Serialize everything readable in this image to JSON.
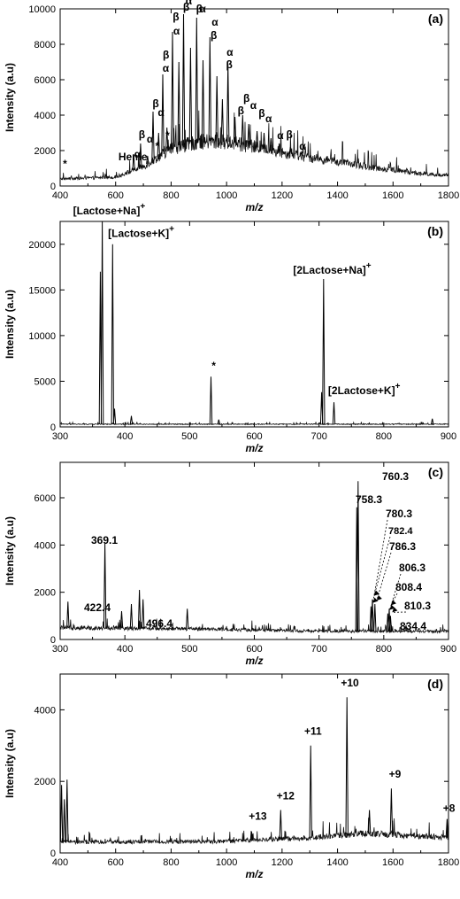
{
  "chart_data": [
    {
      "panel": "(a)",
      "type": "line",
      "xlabel": "m/z",
      "ylabel": "Intensity (a.u)",
      "xlim": [
        400,
        1800
      ],
      "ylim": [
        0,
        10000
      ],
      "xticks": [
        400,
        600,
        800,
        1000,
        1200,
        1400,
        1600,
        1800
      ],
      "yticks": [
        0,
        2000,
        4000,
        6000,
        8000,
        10000
      ],
      "baseline": [
        [
          400,
          400
        ],
        [
          600,
          500
        ],
        [
          700,
          1100
        ],
        [
          800,
          2100
        ],
        [
          900,
          2500
        ],
        [
          1000,
          2500
        ],
        [
          1100,
          2200
        ],
        [
          1200,
          1900
        ],
        [
          1300,
          1600
        ],
        [
          1400,
          1350
        ],
        [
          1500,
          1100
        ],
        [
          1600,
          900
        ],
        [
          1700,
          700
        ],
        [
          1800,
          600
        ]
      ],
      "peaks": [
        {
          "x": 665,
          "y": 1800
        },
        {
          "x": 690,
          "y": 2400
        },
        {
          "x": 715,
          "y": 1700
        },
        {
          "x": 735,
          "y": 4200
        },
        {
          "x": 755,
          "y": 3000
        },
        {
          "x": 770,
          "y": 6300
        },
        {
          "x": 785,
          "y": 3300
        },
        {
          "x": 805,
          "y": 8700
        },
        {
          "x": 828,
          "y": 7000
        },
        {
          "x": 845,
          "y": 9700
        },
        {
          "x": 870,
          "y": 7800
        },
        {
          "x": 892,
          "y": 9500
        },
        {
          "x": 915,
          "y": 7100
        },
        {
          "x": 940,
          "y": 8400
        },
        {
          "x": 965,
          "y": 6200
        },
        {
          "x": 985,
          "y": 4900
        },
        {
          "x": 1005,
          "y": 6900
        },
        {
          "x": 1030,
          "y": 3900
        },
        {
          "x": 1058,
          "y": 4000
        },
        {
          "x": 1080,
          "y": 3500
        },
        {
          "x": 1110,
          "y": 3100
        },
        {
          "x": 1135,
          "y": 3000
        },
        {
          "x": 1160,
          "y": 2700
        },
        {
          "x": 1190,
          "y": 2400
        },
        {
          "x": 1230,
          "y": 2200
        },
        {
          "x": 1270,
          "y": 1900
        }
      ],
      "annotations": [
        {
          "text": "*",
          "x": 410,
          "y": 1050
        },
        {
          "text": "Heme",
          "x": 610,
          "y": 1450
        },
        {
          "text": "α",
          "x": 667,
          "y": 1600
        },
        {
          "text": "β",
          "x": 683,
          "y": 2700
        },
        {
          "text": "α",
          "x": 712,
          "y": 2450
        },
        {
          "text": "*",
          "x": 743,
          "y": 2050
        },
        {
          "text": "β",
          "x": 733,
          "y": 4450
        },
        {
          "text": "α",
          "x": 752,
          "y": 3950
        },
        {
          "text": "*",
          "x": 780,
          "y": 2650
        },
        {
          "text": "α",
          "x": 769,
          "y": 6450
        },
        {
          "text": "β",
          "x": 770,
          "y": 7200
        },
        {
          "text": "α",
          "x": 808,
          "y": 8550
        },
        {
          "text": "β",
          "x": 806,
          "y": 9350
        },
        {
          "text": "β",
          "x": 843,
          "y": 9900
        },
        {
          "text": "α",
          "x": 852,
          "y": 10250
        },
        {
          "text": "β",
          "x": 890,
          "y": 9800
        },
        {
          "text": "α",
          "x": 902,
          "y": 9800
        },
        {
          "text": "α",
          "x": 946,
          "y": 9050
        },
        {
          "text": "β",
          "x": 942,
          "y": 8300
        },
        {
          "text": "α",
          "x": 1000,
          "y": 7350
        },
        {
          "text": "β",
          "x": 998,
          "y": 6650
        },
        {
          "text": "β",
          "x": 1040,
          "y": 4050
        },
        {
          "text": "β",
          "x": 1060,
          "y": 4750
        },
        {
          "text": "α",
          "x": 1085,
          "y": 4350
        },
        {
          "text": "β",
          "x": 1115,
          "y": 3900
        },
        {
          "text": "α",
          "x": 1140,
          "y": 3600
        },
        {
          "text": "α",
          "x": 1182,
          "y": 2650
        },
        {
          "text": "β",
          "x": 1215,
          "y": 2700
        },
        {
          "text": "α",
          "x": 1262,
          "y": 2050
        }
      ]
    },
    {
      "panel": "(b)",
      "type": "line",
      "xlabel": "m/z",
      "ylabel": "Intensity (a.u)",
      "xlim": [
        300,
        900
      ],
      "ylim": [
        0,
        22500
      ],
      "xticks": [
        300,
        400,
        500,
        600,
        700,
        800,
        900
      ],
      "yticks": [
        0,
        5000,
        10000,
        15000,
        20000
      ],
      "baseline": [
        [
          300,
          300
        ],
        [
          900,
          300
        ]
      ],
      "peaks": [
        {
          "x": 362,
          "y": 17000
        },
        {
          "x": 365,
          "y": 22500
        },
        {
          "x": 381,
          "y": 20000
        },
        {
          "x": 384,
          "y": 2000
        },
        {
          "x": 410,
          "y": 1200
        },
        {
          "x": 533,
          "y": 5500
        },
        {
          "x": 545,
          "y": 800
        },
        {
          "x": 704,
          "y": 3800
        },
        {
          "x": 707,
          "y": 16200
        },
        {
          "x": 723,
          "y": 2700
        },
        {
          "x": 875,
          "y": 900
        }
      ],
      "annotations": [
        {
          "text": "[Lactose+Na]",
          "sup": "+",
          "x": 320,
          "y": 23300
        },
        {
          "text": "[Lactose+K]",
          "sup": "+",
          "x": 374,
          "y": 20800
        },
        {
          "text": "*",
          "x": 534,
          "y": 6300
        },
        {
          "text": "[2Lactose+Na]",
          "sup": "+",
          "x": 660,
          "y": 16800
        },
        {
          "text": "[2Lactose+K]",
          "sup": "+",
          "x": 714,
          "y": 3600
        }
      ]
    },
    {
      "panel": "(c)",
      "type": "line",
      "xlabel": "m/z",
      "ylabel": "Intensity (a.u)",
      "xlim": [
        300,
        900
      ],
      "ylim": [
        0,
        7500
      ],
      "xticks": [
        300,
        400,
        500,
        600,
        700,
        800,
        900
      ],
      "yticks": [
        0,
        2000,
        4000,
        6000
      ],
      "baseline": [
        [
          300,
          500
        ],
        [
          500,
          450
        ],
        [
          700,
          350
        ],
        [
          900,
          350
        ]
      ],
      "peaks": [
        {
          "x": 312,
          "y": 1600
        },
        {
          "x": 369.1,
          "y": 4100
        },
        {
          "x": 395,
          "y": 1200
        },
        {
          "x": 410,
          "y": 1500
        },
        {
          "x": 422.4,
          "y": 2100
        },
        {
          "x": 428,
          "y": 1700
        },
        {
          "x": 496.4,
          "y": 1300
        },
        {
          "x": 758.3,
          "y": 5600
        },
        {
          "x": 760.3,
          "y": 6700
        },
        {
          "x": 780.3,
          "y": 1400
        },
        {
          "x": 782.4,
          "y": 1700
        },
        {
          "x": 786.3,
          "y": 1500
        },
        {
          "x": 806.3,
          "y": 1100
        },
        {
          "x": 808.4,
          "y": 1300
        },
        {
          "x": 810.3,
          "y": 1000
        },
        {
          "x": 834.4,
          "y": 600
        }
      ],
      "labels": [
        {
          "text": "369.1",
          "peak": 369.1
        },
        {
          "text": "422.4",
          "peak": 422.4
        },
        {
          "text": "496.4",
          "peak": 496.4
        },
        {
          "text": "758.3",
          "peak": 758.3
        },
        {
          "text": "760.3",
          "peak": 760.3
        },
        {
          "text": "780.3",
          "peak": 780.3
        },
        {
          "text": "782.4",
          "peak": 782.4
        },
        {
          "text": "786.3",
          "peak": 786.3
        },
        {
          "text": "806.3",
          "peak": 806.3
        },
        {
          "text": "808.4",
          "peak": 808.4
        },
        {
          "text": "810.3",
          "peak": 810.3
        },
        {
          "text": "834.4",
          "peak": 834.4
        }
      ]
    },
    {
      "panel": "(d)",
      "type": "line",
      "xlabel": "m/z",
      "ylabel": "Intensity (a.u)",
      "xlim": [
        400,
        1800
      ],
      "ylim": [
        0,
        5000
      ],
      "xticks": [
        400,
        600,
        800,
        1000,
        1200,
        1400,
        1600,
        1800
      ],
      "yticks": [
        0,
        2000,
        4000
      ],
      "baseline": [
        [
          400,
          300
        ],
        [
          1000,
          320
        ],
        [
          1300,
          420
        ],
        [
          1500,
          550
        ],
        [
          1800,
          430
        ]
      ],
      "peaks": [
        {
          "x": 405,
          "y": 1900
        },
        {
          "x": 415,
          "y": 1500
        },
        {
          "x": 425,
          "y": 2050
        },
        {
          "x": 1090,
          "y": 600
        },
        {
          "x": 1195,
          "y": 1200
        },
        {
          "x": 1303,
          "y": 3000
        },
        {
          "x": 1434,
          "y": 4350
        },
        {
          "x": 1515,
          "y": 1200
        },
        {
          "x": 1594,
          "y": 1800
        },
        {
          "x": 1795,
          "y": 950
        }
      ],
      "annotations": [
        {
          "text": "+13",
          "x": 1080,
          "y": 930
        },
        {
          "text": "+12",
          "x": 1180,
          "y": 1500
        },
        {
          "text": "+11",
          "x": 1280,
          "y": 3300
        },
        {
          "text": "+10",
          "x": 1412,
          "y": 4650
        },
        {
          "text": "+9",
          "x": 1585,
          "y": 2100
        },
        {
          "text": "+8",
          "x": 1780,
          "y": 1150
        }
      ]
    }
  ]
}
